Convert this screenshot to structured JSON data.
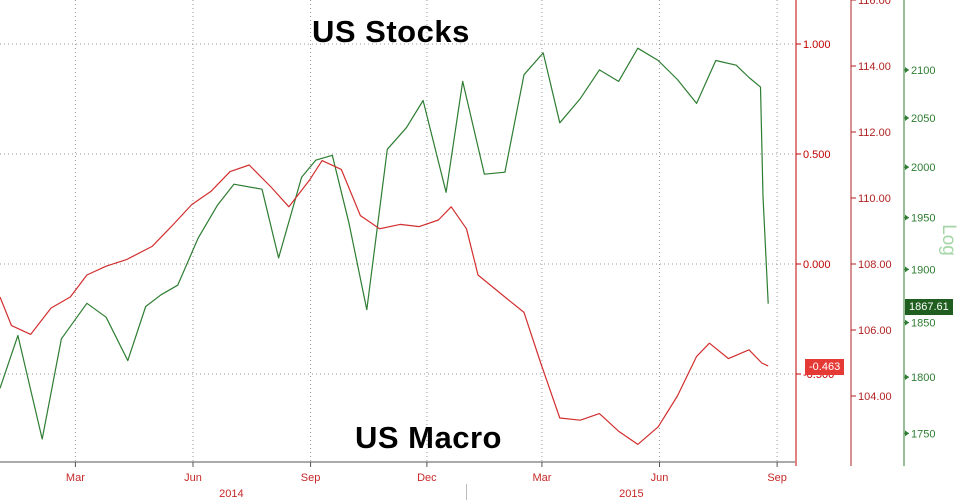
{
  "chart_data": {
    "type": "line",
    "x_axis": {
      "months": [
        "Mar",
        "Jun",
        "Sep",
        "Dec",
        "Mar",
        "Jun",
        "Sep"
      ],
      "month_dates": [
        "2014-03",
        "2014-06",
        "2014-09",
        "2014-12",
        "2015-03",
        "2015-06",
        "2015-09"
      ],
      "years": [
        "2014",
        "2015"
      ],
      "range": [
        "2014-01-01",
        "2015-09-15"
      ]
    },
    "grid": true,
    "axes": [
      {
        "id": "macro",
        "side": "right",
        "color": "#c00000",
        "range": [
          -0.9,
          1.2
        ],
        "ticks": [
          "1.000",
          "0.500",
          "0.000",
          "-0.500"
        ]
      },
      {
        "id": "price",
        "side": "right",
        "color": "#b22222",
        "range": [
          102.0,
          116.0
        ],
        "ticks": [
          "116.00",
          "114.00",
          "112.00",
          "110.00",
          "108.00",
          "106.00",
          "104.00"
        ]
      },
      {
        "id": "stocks",
        "side": "right",
        "color": "#2e7d32",
        "scale": "log",
        "label": "Log",
        "range": [
          1725,
          2175
        ],
        "ticks": [
          "2100",
          "2050",
          "2000",
          "1950",
          "1900",
          "1850",
          "1800",
          "1750"
        ]
      }
    ],
    "series": [
      {
        "name": "US Stocks",
        "axis": "stocks",
        "color": "#2e7d32",
        "last_value_label": "1867.61",
        "points": [
          [
            "2014-01-01",
            1790
          ],
          [
            "2014-01-15",
            1838
          ],
          [
            "2014-02-03",
            1745
          ],
          [
            "2014-02-18",
            1835
          ],
          [
            "2014-03-10",
            1868
          ],
          [
            "2014-03-25",
            1855
          ],
          [
            "2014-04-11",
            1815
          ],
          [
            "2014-04-25",
            1865
          ],
          [
            "2014-05-07",
            1876
          ],
          [
            "2014-05-20",
            1885
          ],
          [
            "2014-06-05",
            1930
          ],
          [
            "2014-06-20",
            1962
          ],
          [
            "2014-07-03",
            1983
          ],
          [
            "2014-07-25",
            1978
          ],
          [
            "2014-08-07",
            1911
          ],
          [
            "2014-08-25",
            1990
          ],
          [
            "2014-09-05",
            2007
          ],
          [
            "2014-09-18",
            2012
          ],
          [
            "2014-10-01",
            1945
          ],
          [
            "2014-10-15",
            1862
          ],
          [
            "2014-10-31",
            2018
          ],
          [
            "2014-11-15",
            2040
          ],
          [
            "2014-11-28",
            2068
          ],
          [
            "2014-12-16",
            1975
          ],
          [
            "2014-12-29",
            2088
          ],
          [
            "2015-01-15",
            1993
          ],
          [
            "2015-01-31",
            1995
          ],
          [
            "2015-02-15",
            2095
          ],
          [
            "2015-03-02",
            2118
          ],
          [
            "2015-03-15",
            2045
          ],
          [
            "2015-03-31",
            2070
          ],
          [
            "2015-04-15",
            2100
          ],
          [
            "2015-04-30",
            2088
          ],
          [
            "2015-05-15",
            2123
          ],
          [
            "2015-05-31",
            2110
          ],
          [
            "2015-06-15",
            2090
          ],
          [
            "2015-06-30",
            2065
          ],
          [
            "2015-07-15",
            2110
          ],
          [
            "2015-07-31",
            2105
          ],
          [
            "2015-08-10",
            2092
          ],
          [
            "2015-08-19",
            2082
          ],
          [
            "2015-08-21",
            1971
          ],
          [
            "2015-08-25",
            1867.61
          ]
        ]
      },
      {
        "name": "US Macro",
        "axis": "macro",
        "color": "#d32f2f",
        "last_value_label": "-0.463",
        "points": [
          [
            "2014-01-01",
            -0.15
          ],
          [
            "2014-01-10",
            -0.28
          ],
          [
            "2014-01-25",
            -0.32
          ],
          [
            "2014-02-10",
            -0.2
          ],
          [
            "2014-02-25",
            -0.15
          ],
          [
            "2014-03-10",
            -0.05
          ],
          [
            "2014-03-25",
            -0.01
          ],
          [
            "2014-04-10",
            0.02
          ],
          [
            "2014-04-30",
            0.08
          ],
          [
            "2014-05-15",
            0.17
          ],
          [
            "2014-05-31",
            0.27
          ],
          [
            "2014-06-15",
            0.33
          ],
          [
            "2014-06-30",
            0.42
          ],
          [
            "2014-07-15",
            0.45
          ],
          [
            "2014-08-01",
            0.35
          ],
          [
            "2014-08-15",
            0.26
          ],
          [
            "2014-08-31",
            0.38
          ],
          [
            "2014-09-10",
            0.47
          ],
          [
            "2014-09-25",
            0.43
          ],
          [
            "2014-10-10",
            0.22
          ],
          [
            "2014-10-25",
            0.16
          ],
          [
            "2014-11-10",
            0.18
          ],
          [
            "2014-11-25",
            0.17
          ],
          [
            "2014-12-10",
            0.2
          ],
          [
            "2014-12-20",
            0.26
          ],
          [
            "2015-01-01",
            0.16
          ],
          [
            "2015-01-10",
            -0.05
          ],
          [
            "2015-01-31",
            -0.15
          ],
          [
            "2015-02-15",
            -0.22
          ],
          [
            "2015-02-28",
            -0.45
          ],
          [
            "2015-03-15",
            -0.7
          ],
          [
            "2015-03-31",
            -0.71
          ],
          [
            "2015-04-15",
            -0.68
          ],
          [
            "2015-04-30",
            -0.76
          ],
          [
            "2015-05-15",
            -0.82
          ],
          [
            "2015-05-31",
            -0.74
          ],
          [
            "2015-06-15",
            -0.6
          ],
          [
            "2015-06-30",
            -0.42
          ],
          [
            "2015-07-10",
            -0.36
          ],
          [
            "2015-07-25",
            -0.43
          ],
          [
            "2015-08-10",
            -0.39
          ],
          [
            "2015-08-20",
            -0.45
          ],
          [
            "2015-08-25",
            -0.463
          ]
        ]
      }
    ],
    "annotations": [
      {
        "text": "US Stocks",
        "color": "#33661f"
      },
      {
        "text": "US Macro",
        "color": "#9b1c1c"
      }
    ]
  }
}
